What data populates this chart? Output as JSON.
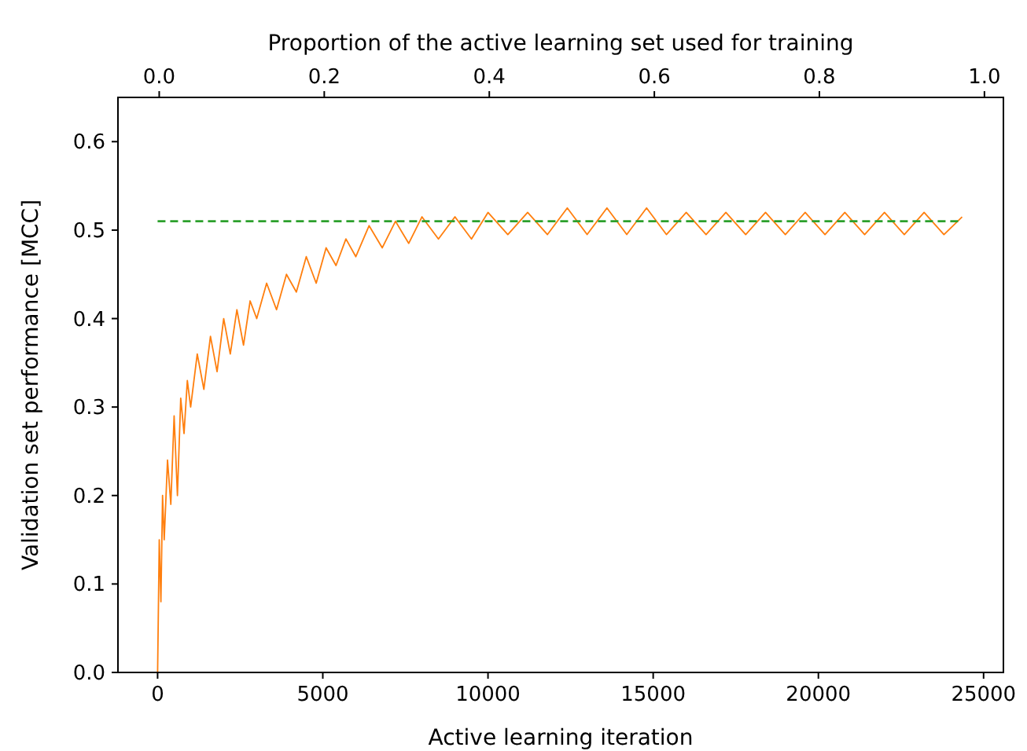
{
  "chart_data": {
    "type": "line",
    "xlabel": "Active learning iteration",
    "ylabel": "Validation set performance [MCC]",
    "x2label": "Proportion of the active learning set used for training",
    "xlim": [
      -1200,
      25600
    ],
    "xticks": [
      0,
      5000,
      10000,
      15000,
      20000,
      25000
    ],
    "x2lim": [
      -0.05,
      1.023
    ],
    "x2ticks": [
      {
        "value": 0,
        "label": "0.0"
      },
      {
        "value": 0.2,
        "label": "0.2"
      },
      {
        "value": 0.4,
        "label": "0.4"
      },
      {
        "value": 0.6,
        "label": "0.6"
      },
      {
        "value": 0.8,
        "label": "0.8"
      },
      {
        "value": 1,
        "label": "1.0"
      }
    ],
    "ylim": [
      0,
      0.65
    ],
    "yticks": [
      {
        "value": 0,
        "label": "0.0"
      },
      {
        "value": 0.1,
        "label": "0.1"
      },
      {
        "value": 0.2,
        "label": "0.2"
      },
      {
        "value": 0.3,
        "label": "0.3"
      },
      {
        "value": 0.4,
        "label": "0.4"
      },
      {
        "value": 0.5,
        "label": "0.5"
      },
      {
        "value": 0.6,
        "label": "0.6"
      }
    ],
    "grid": false,
    "series": [
      {
        "type": "line",
        "color": "#ff7f0e",
        "line_style": "solid",
        "x": [
          0,
          50,
          100,
          150,
          200,
          300,
          400,
          500,
          600,
          700,
          800,
          900,
          1000,
          1200,
          1400,
          1600,
          1800,
          2000,
          2200,
          2400,
          2600,
          2800,
          3000,
          3300,
          3600,
          3900,
          4200,
          4500,
          4800,
          5100,
          5400,
          5700,
          6000,
          6400,
          6800,
          7200,
          7600,
          8000,
          8500,
          9000,
          9500,
          10000,
          10600,
          11200,
          11800,
          12400,
          13000,
          13600,
          14200,
          14800,
          15400,
          16000,
          16600,
          17200,
          17800,
          18400,
          19000,
          19600,
          20200,
          20800,
          21400,
          22000,
          22600,
          23200,
          23800,
          24350
        ],
        "values": [
          0.0,
          0.15,
          0.08,
          0.2,
          0.15,
          0.24,
          0.19,
          0.29,
          0.2,
          0.31,
          0.27,
          0.33,
          0.3,
          0.36,
          0.32,
          0.38,
          0.34,
          0.4,
          0.36,
          0.41,
          0.37,
          0.42,
          0.4,
          0.44,
          0.41,
          0.45,
          0.43,
          0.47,
          0.44,
          0.48,
          0.46,
          0.49,
          0.47,
          0.505,
          0.48,
          0.51,
          0.485,
          0.515,
          0.49,
          0.515,
          0.49,
          0.52,
          0.495,
          0.52,
          0.495,
          0.525,
          0.495,
          0.525,
          0.495,
          0.525,
          0.495,
          0.52,
          0.495,
          0.52,
          0.495,
          0.52,
          0.495,
          0.52,
          0.495,
          0.52,
          0.495,
          0.52,
          0.495,
          0.52,
          0.495,
          0.515
        ]
      },
      {
        "type": "line",
        "color": "#2ca02c",
        "line_style": "dashed",
        "x": [
          0,
          24350
        ],
        "values": [
          0.51,
          0.51
        ]
      }
    ]
  }
}
